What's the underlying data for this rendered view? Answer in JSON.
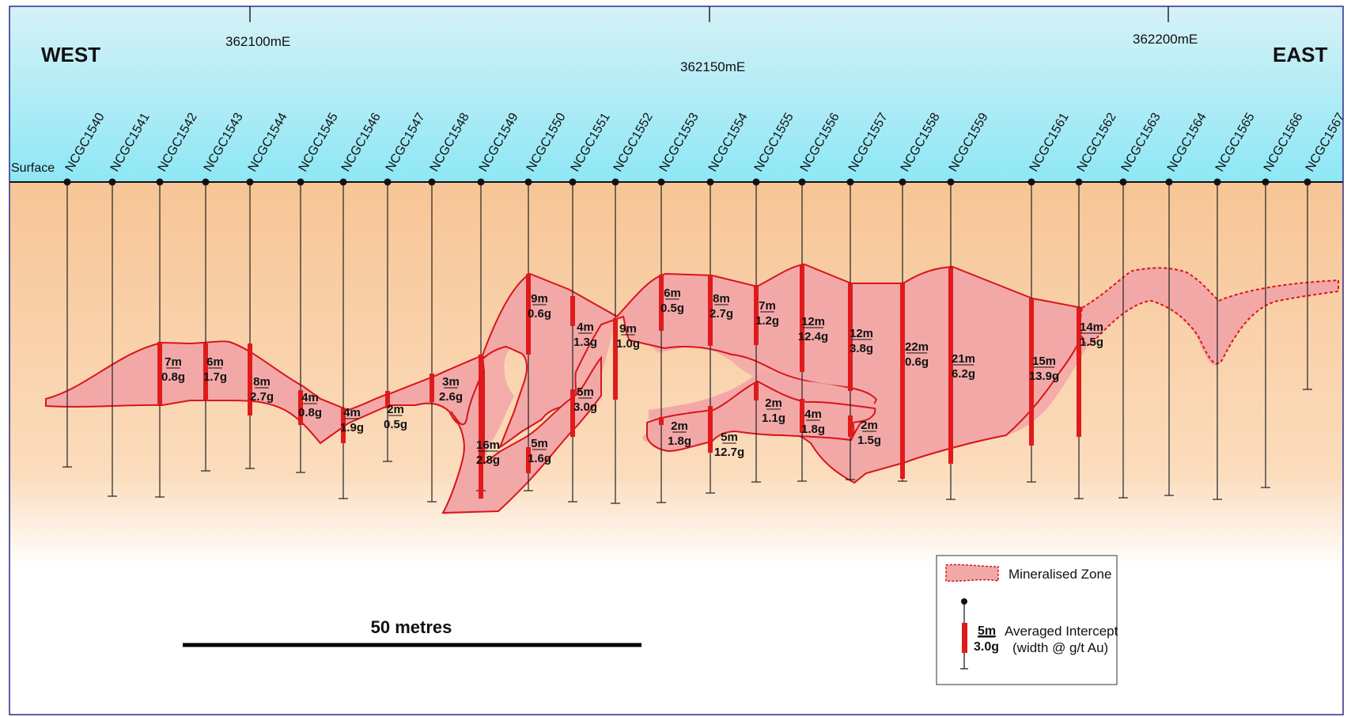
{
  "section": {
    "west_label": "WEST",
    "east_label": "EAST",
    "surface_label": "Surface",
    "eastings": [
      "362100mE",
      "362150mE",
      "362200mE"
    ],
    "scale_bar_label": "50 metres"
  },
  "holes": [
    "NCGC1540",
    "NCGC1541",
    "NCGC1542",
    "NCGC1543",
    "NCGC1544",
    "NCGC1545",
    "NCGC1546",
    "NCGC1547",
    "NCGC1548",
    "NCGC1549",
    "NCGC1550",
    "NCGC1551",
    "NCGC1552",
    "NCGC1553",
    "NCGC1554",
    "NCGC1555",
    "NCGC1556",
    "NCGC1557",
    "NCGC1558",
    "NCGC1559",
    "NCGC1561",
    "NCGC1562",
    "NCGC1563",
    "NCGC1564",
    "NCGC1565",
    "NCGC1566",
    "NCGC1567"
  ],
  "intercepts": [
    {
      "width": "7m",
      "grade": "0.8g"
    },
    {
      "width": "6m",
      "grade": "1.7g"
    },
    {
      "width": "8m",
      "grade": "2.7g"
    },
    {
      "width": "4m",
      "grade": "0.8g"
    },
    {
      "width": "4m",
      "grade": "1.9g"
    },
    {
      "width": "2m",
      "grade": "0.5g"
    },
    {
      "width": "3m",
      "grade": "2.6g"
    },
    {
      "width": "16m",
      "grade": "2.8g"
    },
    {
      "width": "9m",
      "grade": "0.6g"
    },
    {
      "width": "5m",
      "grade": "1.6g"
    },
    {
      "width": "4m",
      "grade": "1.3g"
    },
    {
      "width": "5m",
      "grade": "3.0g"
    },
    {
      "width": "9m",
      "grade": "1.0g"
    },
    {
      "width": "6m",
      "grade": "0.5g"
    },
    {
      "width": "2m",
      "grade": "1.8g"
    },
    {
      "width": "8m",
      "grade": "2.7g"
    },
    {
      "width": "5m",
      "grade": "12.7g"
    },
    {
      "width": "7m",
      "grade": "1.2g"
    },
    {
      "width": "2m",
      "grade": "1.1g"
    },
    {
      "width": "12m",
      "grade": "12.4g"
    },
    {
      "width": "4m",
      "grade": "1.8g"
    },
    {
      "width": "12m",
      "grade": "3.8g"
    },
    {
      "width": "2m",
      "grade": "1.5g"
    },
    {
      "width": "22m",
      "grade": "0.6g"
    },
    {
      "width": "21m",
      "grade": "6.2g"
    },
    {
      "width": "15m",
      "grade": "13.9g"
    },
    {
      "width": "14m",
      "grade": "1.5g"
    }
  ],
  "legend": {
    "zone_label": "Mineralised Zone",
    "sample_width": "5m",
    "sample_grade": "3.0g",
    "intercept_label": "Averaged Intercept",
    "intercept_sublabel": "(width @ g/t Au)"
  },
  "colors": {
    "sky_top": "#cdeef6",
    "sky_bottom": "#8fe6f4",
    "ground": "#f7c79b",
    "zone_fill": "#f3a8a8",
    "zone_outline": "#d8151b",
    "intercept_bar": "#e01a1a",
    "frame": "#2a2a8a"
  }
}
